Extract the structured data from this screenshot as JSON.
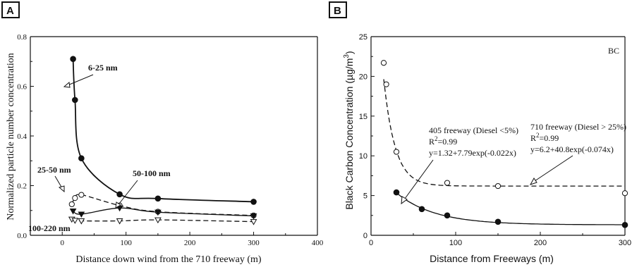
{
  "chart_data": [
    {
      "type": "scatter",
      "panel_label": "A",
      "xlabel": "Distance down wind from the 710 freeway (m)",
      "ylabel": "Normalized particle number concentration",
      "xlim": [
        -50,
        400
      ],
      "ylim": [
        0,
        0.8
      ],
      "xticks": [
        0,
        100,
        200,
        300,
        400
      ],
      "yticks": [
        0.0,
        0.2,
        0.4,
        0.6,
        0.8
      ],
      "xtick_labels": [
        "0",
        "100",
        "200",
        "300",
        "400"
      ],
      "ytick_labels": [
        "0.0",
        "0.2",
        "0.4",
        "0.6",
        "0.8"
      ],
      "grid": false,
      "series": [
        {
          "name": "6-25 nm",
          "marker": "filled-circle",
          "line": "solid-bold",
          "x": [
            17,
            20,
            30,
            90,
            150,
            300
          ],
          "y": [
            0.71,
            0.545,
            0.31,
            0.165,
            0.148,
            0.135
          ]
        },
        {
          "name": "25-50 nm",
          "marker": "open-circle",
          "line": "dashed",
          "x": [
            15,
            20,
            30,
            90,
            150,
            300
          ],
          "y": [
            0.125,
            0.15,
            0.163,
            0.12,
            0.095,
            0.08
          ]
        },
        {
          "name": "50-100 nm",
          "marker": "filled-triangle-down",
          "line": "solid",
          "x": [
            17,
            30,
            90,
            150,
            300
          ],
          "y": [
            0.098,
            0.085,
            0.11,
            0.093,
            0.078
          ]
        },
        {
          "name": "100-220 nm",
          "marker": "open-triangle-down",
          "line": "dashed",
          "x": [
            15,
            20,
            30,
            90,
            150,
            300
          ],
          "y": [
            0.065,
            0.06,
            0.058,
            0.058,
            0.062,
            0.055
          ]
        }
      ],
      "annotations": [
        "6-25 nm",
        "25-50 nm",
        "50-100 nm",
        "100-220 nm"
      ]
    },
    {
      "type": "scatter",
      "panel_label": "B",
      "corner_label": "BC",
      "xlabel": "Distance from Freeways (m)",
      "ylabel": "Black Carbon Concentration (µg/m",
      "ylabel_sup": "3",
      "ylabel_close": ")",
      "xlim": [
        0,
        300
      ],
      "ylim": [
        0,
        25
      ],
      "xticks": [
        0,
        100,
        200,
        300
      ],
      "yticks": [
        0,
        5,
        10,
        15,
        20,
        25
      ],
      "xtick_labels": [
        "0",
        "100",
        "200",
        "300"
      ],
      "ytick_labels": [
        "0",
        "5",
        "10",
        "15",
        "20",
        "25"
      ],
      "grid": false,
      "series": [
        {
          "name": "710 freeway (Diesel > 25%)",
          "marker": "open-circle",
          "line": "dashed",
          "x": [
            15,
            18,
            30,
            90,
            150,
            300
          ],
          "y": [
            21.7,
            19,
            10.5,
            6.6,
            6.2,
            5.3
          ],
          "fit": {
            "a": 6.2,
            "b": 40.8,
            "k": -0.074
          }
        },
        {
          "name": "405 freeway (Diesel <5%)",
          "marker": "filled-circle",
          "line": "solid",
          "x": [
            30,
            60,
            90,
            150,
            300
          ],
          "y": [
            5.4,
            3.3,
            2.5,
            1.7,
            1.3
          ],
          "fit": {
            "a": 1.32,
            "b": 7.79,
            "k": -0.022
          }
        }
      ],
      "annotations": {
        "a405": {
          "title": "405 freeway (Diesel <5%)",
          "r2_prefix": "R",
          "r2_sup": "2",
          "r2_value": "=0.99",
          "eq": "y=1.32+7.79exp(-0.022x)"
        },
        "a710": {
          "title": "710 freeway (Diesel > 25%)",
          "r2_prefix": "R",
          "r2_sup": "2",
          "r2_value": "=0.99",
          "eq": "y=6.2+40.8exp(-0.074x)"
        }
      }
    }
  ]
}
